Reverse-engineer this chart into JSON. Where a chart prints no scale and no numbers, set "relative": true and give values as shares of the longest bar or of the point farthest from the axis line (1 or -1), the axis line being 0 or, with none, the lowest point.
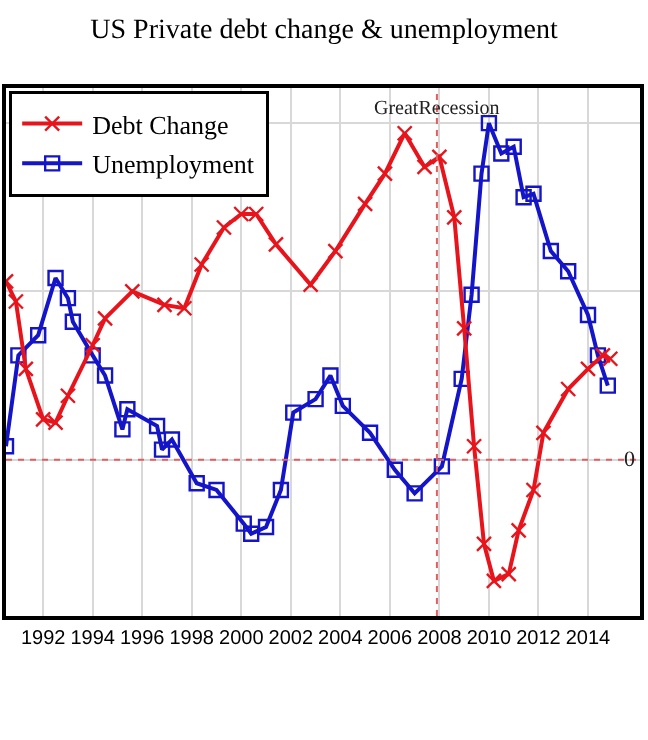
{
  "chart_data": {
    "type": "line",
    "title": "US Private debt change & unemployment",
    "relative": true,
    "xlim": [
      1990.5,
      2016.1
    ],
    "xticks": [
      1992,
      1994,
      1996,
      1998,
      2000,
      2002,
      2004,
      2006,
      2008,
      2010,
      2012,
      2014
    ],
    "grid": true,
    "legend": "top left",
    "line_style": "solid",
    "ref_lines": [
      {
        "axis": "y",
        "value": 0,
        "label": "0",
        "color": "#e06060",
        "line_style": "dotted"
      },
      {
        "axis": "x",
        "value": 2007.9,
        "label": "GreatRecession",
        "color": "#e06060",
        "line_style": "dotted"
      }
    ],
    "series": [
      {
        "name": "Debt Change",
        "color": "#e8141c",
        "marker": "cross",
        "x": [
          1990.5,
          1990.9,
          1991.3,
          1992.0,
          1992.5,
          1993.0,
          1994.0,
          1994.5,
          1995.6,
          1996.9,
          1997.7,
          1998.4,
          1999.3,
          2000.0,
          2000.6,
          2001.4,
          2002.8,
          2003.8,
          2005.0,
          2005.8,
          2006.6,
          2007.4,
          2008.0,
          2008.6,
          2009.0,
          2009.4,
          2009.8,
          2010.2,
          2010.8,
          2011.2,
          2011.8,
          2012.2,
          2013.2,
          2014.0,
          2014.6,
          2014.9
        ],
        "values": [
          0.53,
          0.47,
          0.27,
          0.12,
          0.11,
          0.19,
          0.34,
          0.42,
          0.5,
          0.46,
          0.45,
          0.58,
          0.69,
          0.73,
          0.73,
          0.64,
          0.52,
          0.62,
          0.76,
          0.85,
          0.97,
          0.87,
          0.9,
          0.72,
          0.39,
          0.04,
          -0.25,
          -0.36,
          -0.34,
          -0.21,
          -0.09,
          0.08,
          0.21,
          0.27,
          0.31,
          0.3
        ]
      },
      {
        "name": "Unemployment",
        "color": "#1414c8",
        "marker": "square",
        "x": [
          1990.5,
          1991.0,
          1991.8,
          1992.5,
          1993.0,
          1993.2,
          1994.0,
          1994.5,
          1995.2,
          1995.4,
          1996.6,
          1996.8,
          1997.2,
          1998.2,
          1999.0,
          2000.1,
          2000.4,
          2001.0,
          2001.6,
          2002.1,
          2003.0,
          2003.6,
          2004.1,
          2005.2,
          2006.2,
          2007.0,
          2008.1,
          2008.9,
          2009.3,
          2009.7,
          2010.0,
          2010.5,
          2011.0,
          2011.4,
          2011.8,
          2012.5,
          2013.2,
          2014.0,
          2014.4,
          2014.8
        ],
        "values": [
          0.04,
          0.31,
          0.37,
          0.54,
          0.48,
          0.41,
          0.31,
          0.25,
          0.09,
          0.15,
          0.1,
          0.03,
          0.06,
          -0.07,
          -0.09,
          -0.19,
          -0.22,
          -0.2,
          -0.09,
          0.14,
          0.18,
          0.25,
          0.16,
          0.08,
          -0.03,
          -0.1,
          -0.02,
          0.24,
          0.49,
          0.85,
          1,
          0.91,
          0.93,
          0.78,
          0.79,
          0.62,
          0.56,
          0.43,
          0.31,
          0.22
        ]
      }
    ]
  }
}
